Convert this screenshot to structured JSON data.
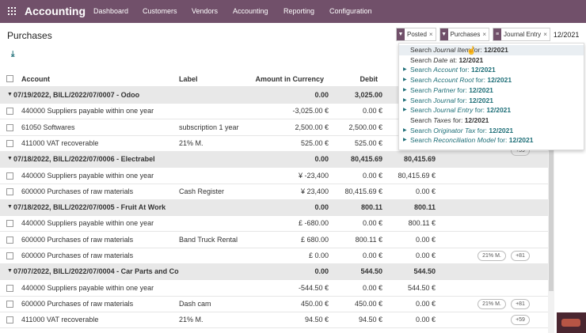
{
  "navbar": {
    "app_name": "Accounting",
    "menu": [
      "Dashboard",
      "Customers",
      "Vendors",
      "Accounting",
      "Reporting",
      "Configuration"
    ]
  },
  "page": {
    "title": "Purchases"
  },
  "search": {
    "facets": [
      {
        "icon": "filter-icon",
        "label": "Posted"
      },
      {
        "icon": "filter-icon",
        "label": "Purchases"
      },
      {
        "icon": "groupby-icon",
        "label": "Journal Entry"
      }
    ],
    "query": "12/2021",
    "suggestions": [
      {
        "prefix": "Search ",
        "field": "Journal Item",
        "suffix": " for: ",
        "value": "12/2021",
        "arrow": false,
        "active": true
      },
      {
        "prefix": "Search ",
        "field": "Date",
        "suffix": " at: ",
        "value": "12/2021",
        "arrow": false
      },
      {
        "prefix": "Search ",
        "field": "Account",
        "suffix": " for: ",
        "value": "12/2021",
        "arrow": true
      },
      {
        "prefix": "Search ",
        "field": "Account Root",
        "suffix": " for: ",
        "value": "12/2021",
        "arrow": true
      },
      {
        "prefix": "Search ",
        "field": "Partner",
        "suffix": " for: ",
        "value": "12/2021",
        "arrow": true
      },
      {
        "prefix": "Search ",
        "field": "Journal",
        "suffix": " for: ",
        "value": "12/2021",
        "arrow": true
      },
      {
        "prefix": "Search ",
        "field": "Journal Entry",
        "suffix": " for: ",
        "value": "12/2021",
        "arrow": true
      },
      {
        "prefix": "Search ",
        "field": "Taxes",
        "suffix": " for: ",
        "value": "12/2021",
        "arrow": false
      },
      {
        "prefix": "Search ",
        "field": "Originator Tax",
        "suffix": " for: ",
        "value": "12/2021",
        "arrow": true
      },
      {
        "prefix": "Search ",
        "field": "Reconciliation Model",
        "suffix": " for: ",
        "value": "12/2021",
        "arrow": true
      }
    ]
  },
  "table": {
    "columns": {
      "account": "Account",
      "label": "Label",
      "amount_currency": "Amount in Currency",
      "debit": "Debit"
    },
    "rows": [
      {
        "type": "group",
        "account": "07/19/2022, BILL/2022/07/0007 - Odoo",
        "amount_currency": "0.00",
        "debit": "3,025.00",
        "credit": ""
      },
      {
        "type": "line",
        "account": "440000 Suppliers payable within one year",
        "label": "",
        "amount_currency": "-3,025.00 €",
        "debit": "0.00 €",
        "credit": "",
        "tags": []
      },
      {
        "type": "line",
        "account": "61050 Softwares",
        "label": "subscription 1 year",
        "amount_currency": "2,500.00 €",
        "debit": "2,500.00 €",
        "credit": "",
        "tags": []
      },
      {
        "type": "line",
        "account": "411000 VAT recoverable",
        "label": "21% M.",
        "amount_currency": "525.00 €",
        "debit": "525.00 €",
        "credit": "",
        "tags": []
      },
      {
        "type": "group",
        "account": "07/18/2022, BILL/2022/07/0006 - Electrabel",
        "amount_currency": "0.00",
        "debit": "80,415.69",
        "credit": "80,415.69"
      },
      {
        "type": "line",
        "account": "440000 Suppliers payable within one year",
        "label": "",
        "amount_currency": "¥ -23,400",
        "debit": "0.00 €",
        "credit": "80,415.69 €",
        "tags": []
      },
      {
        "type": "line",
        "account": "600000 Purchases of raw materials",
        "label": "Cash Register",
        "amount_currency": "¥ 23,400",
        "debit": "80,415.69 €",
        "credit": "0.00 €",
        "tags": []
      },
      {
        "type": "group",
        "account": "07/18/2022, BILL/2022/07/0005 - Fruit At Work",
        "amount_currency": "0.00",
        "debit": "800.11",
        "credit": "800.11"
      },
      {
        "type": "line",
        "account": "440000 Suppliers payable within one year",
        "label": "",
        "amount_currency": "£ -680.00",
        "debit": "0.00 €",
        "credit": "800.11 €",
        "tags": []
      },
      {
        "type": "line",
        "account": "600000 Purchases of raw materials",
        "label": "Band Truck Rental",
        "amount_currency": "£ 680.00",
        "debit": "800.11 €",
        "credit": "0.00 €",
        "tags": []
      },
      {
        "type": "line",
        "account": "600000 Purchases of raw materials",
        "label": "",
        "amount_currency": "£ 0.00",
        "debit": "0.00 €",
        "credit": "0.00 €",
        "tags": [
          "21% M.",
          "+81"
        ]
      },
      {
        "type": "group",
        "account": "07/07/2022, BILL/2022/07/0004 - Car Parts and Co",
        "amount_currency": "0.00",
        "debit": "544.50",
        "credit": "544.50"
      },
      {
        "type": "line",
        "account": "440000 Suppliers payable within one year",
        "label": "",
        "amount_currency": "-544.50 €",
        "debit": "0.00 €",
        "credit": "544.50 €",
        "tags": []
      },
      {
        "type": "line",
        "account": "600000 Purchases of raw materials",
        "label": "Dash cam",
        "amount_currency": "450.00 €",
        "debit": "450.00 €",
        "credit": "0.00 €",
        "tags": [
          "21% M.",
          "+81"
        ]
      },
      {
        "type": "line",
        "account": "411000 VAT recoverable",
        "label": "21% M.",
        "amount_currency": "94.50 €",
        "debit": "94.50 €",
        "credit": "0.00 €",
        "tags": [
          "+59"
        ]
      }
    ],
    "hidden_tag_under_dropdown": "+59"
  },
  "colors": {
    "navbar": "#71506a",
    "link": "#1f6f78",
    "group_bg": "#e8e8e8"
  }
}
